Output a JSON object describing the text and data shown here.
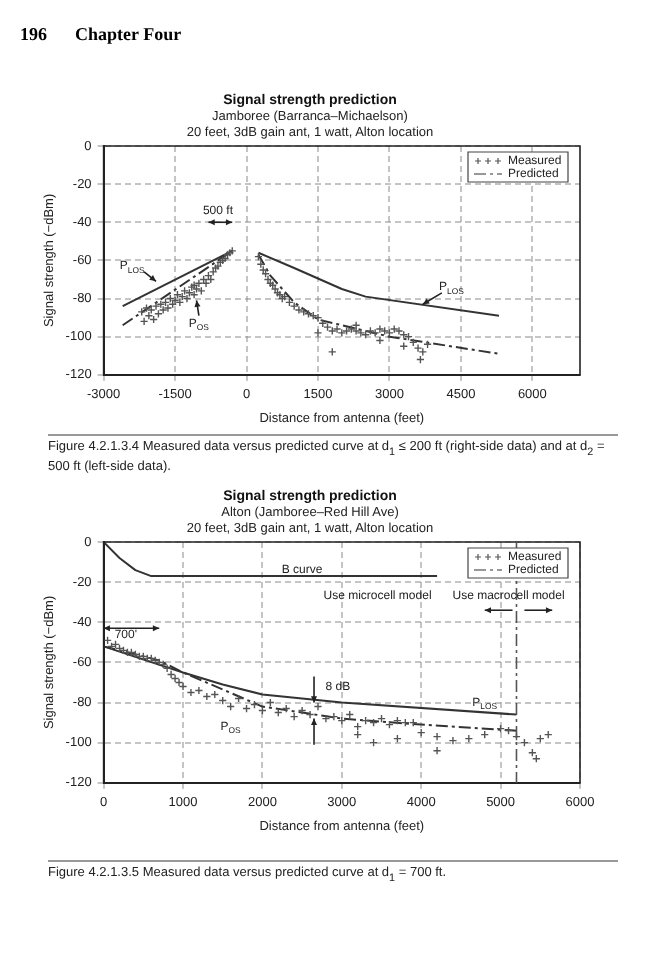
{
  "chart_data": [
    {
      "type": "scatter",
      "title": "Signal strength prediction",
      "subtitle": "Jamboree (Barranca–Michaelson)\n20 feet, 3dB gain ant, 1 watt, Alton location",
      "xlabel": "Distance from antenna (feet)",
      "ylabel": "Signal strength (−dBm)",
      "xlim": [
        -3000,
        7000
      ],
      "xticks": [
        -3000,
        -1500,
        0,
        1500,
        3000,
        4500,
        6000
      ],
      "ylim": [
        -120,
        0
      ],
      "yticks": [
        -120,
        -100,
        -80,
        -60,
        -40,
        -20,
        0
      ],
      "grid": true,
      "legend": "top right",
      "series": [
        {
          "name": "Measured",
          "color": "#555555",
          "marker": "cross",
          "x": [
            -2200,
            -2150,
            -2100,
            -2050,
            -2000,
            -1950,
            -1900,
            -1850,
            -1800,
            -1750,
            -1700,
            -1650,
            -1600,
            -1550,
            -1500,
            -1450,
            -1400,
            -1350,
            -1300,
            -1250,
            -1200,
            -1150,
            -1100,
            -1050,
            -1000,
            -950,
            -900,
            -850,
            -800,
            -750,
            -700,
            -650,
            -600,
            -550,
            -500,
            -450,
            -400,
            -350,
            -300,
            -1100,
            250,
            300,
            350,
            400,
            450,
            500,
            550,
            600,
            650,
            700,
            750,
            800,
            900,
            1000,
            1100,
            1200,
            1300,
            1400,
            1500,
            1600,
            1700,
            1800,
            1900,
            2000,
            2100,
            2200,
            2300,
            2400,
            2500,
            2600,
            2700,
            2800,
            2900,
            3000,
            3100,
            3200,
            3300,
            3400,
            3500,
            3600,
            3700,
            3800,
            1500,
            1800,
            2300,
            2800,
            3300,
            3650
          ],
          "values": [
            -87,
            -92,
            -85,
            -89,
            -86,
            -91,
            -84,
            -88,
            -83,
            -86,
            -82,
            -85,
            -80,
            -83,
            -81,
            -78,
            -82,
            -79,
            -76,
            -80,
            -77,
            -74,
            -78,
            -75,
            -72,
            -76,
            -70,
            -72,
            -68,
            -70,
            -66,
            -64,
            -63,
            -61,
            -60,
            -59,
            -57,
            -56,
            -55,
            -73,
            -58,
            -62,
            -65,
            -67,
            -70,
            -72,
            -73,
            -75,
            -77,
            -78,
            -80,
            -79,
            -82,
            -84,
            -86,
            -87,
            -88,
            -89,
            -90,
            -93,
            -95,
            -97,
            -96,
            -98,
            -97,
            -96,
            -97,
            -98,
            -99,
            -97,
            -98,
            -96,
            -97,
            -98,
            -96,
            -97,
            -99,
            -100,
            -103,
            -106,
            -108,
            -104,
            -98,
            -108,
            -94,
            -102,
            -105,
            -112
          ]
        },
        {
          "type": "line",
          "color": "#333333",
          "line_style": "dashed",
          "marker": "none",
          "x": [
            -2600,
            -300
          ],
          "values": [
            -94,
            -55
          ]
        },
        {
          "name": "Predicted",
          "type": "line",
          "color": "#333333",
          "line_style": "dashed",
          "marker": "none",
          "x": [
            250,
            500,
            1000,
            1500,
            3000,
            5300
          ],
          "values": [
            -57,
            -68,
            -82,
            -91,
            -100,
            -109
          ]
        },
        {
          "type": "line",
          "color": "#333333",
          "line_style": "solid",
          "marker": "none",
          "x": [
            -2600,
            -300
          ],
          "values": [
            -84,
            -55
          ]
        },
        {
          "type": "line",
          "color": "#333333",
          "line_style": "solid",
          "marker": "none",
          "x": [
            250,
            1000,
            2000,
            2500,
            5300
          ],
          "values": [
            -56,
            -64,
            -75,
            -79,
            -89
          ]
        }
      ],
      "annotations": [
        "196",
        "Chapter Four",
        "500 ft",
        "P$_{LOS}$",
        "P$_{OS}$",
        "P$_{LOS}$",
        "Figure 4.2.1.3.4 Measured data versus predicted curve at d$_{1}$ ≤ 200 ft (right-side data) and at d$_{2}$ = 500 ft (left-side data)."
      ]
    },
    {
      "type": "scatter",
      "title": "Signal strength prediction",
      "subtitle": "Alton (Jamboree–Red Hill Ave)\n20 feet, 3dB gain ant, 1 watt, Alton location",
      "xlabel": "Distance from antenna (feet)",
      "ylabel": "Signal strength (−dBm)",
      "xlim": [
        0,
        6000
      ],
      "xticks": [
        0,
        1000,
        2000,
        3000,
        4000,
        5000,
        6000
      ],
      "ylim": [
        -120,
        0
      ],
      "yticks": [
        -120,
        -100,
        -80,
        -60,
        -40,
        -20,
        0
      ],
      "grid": true,
      "legend": "top right",
      "series": [
        {
          "name": "Measured",
          "color": "#555555",
          "marker": "cross",
          "x": [
            50,
            100,
            150,
            200,
            250,
            300,
            350,
            400,
            450,
            500,
            550,
            600,
            650,
            700,
            750,
            800,
            850,
            900,
            950,
            1000,
            1100,
            1200,
            1300,
            1400,
            1500,
            1600,
            1700,
            1800,
            1900,
            2000,
            2100,
            2200,
            2300,
            2400,
            2500,
            2600,
            2700,
            2800,
            2900,
            3000,
            3100,
            3200,
            3300,
            3400,
            3500,
            3600,
            3700,
            3800,
            3900,
            4000,
            4200,
            4400,
            4600,
            4800,
            5000,
            5100,
            5200,
            5300,
            5400,
            5450,
            5500,
            5600,
            3200,
            3400,
            4200,
            3700
          ],
          "values": [
            -49,
            -52,
            -51,
            -53,
            -54,
            -55,
            -55,
            -56,
            -57,
            -57,
            -58,
            -58,
            -59,
            -60,
            -61,
            -63,
            -66,
            -68,
            -70,
            -72,
            -75,
            -74,
            -77,
            -76,
            -79,
            -82,
            -78,
            -83,
            -81,
            -84,
            -80,
            -85,
            -83,
            -87,
            -84,
            -86,
            -82,
            -88,
            -87,
            -89,
            -86,
            -92,
            -89,
            -90,
            -88,
            -91,
            -89,
            -90,
            -90,
            -95,
            -97,
            -99,
            -98,
            -96,
            -93,
            -94,
            -97,
            -100,
            -105,
            -108,
            -98,
            -96,
            -96,
            -100,
            -104,
            -98
          ]
        },
        {
          "name": "Predicted",
          "type": "line",
          "color": "#333333",
          "line_style": "dashed",
          "marker": "none",
          "x": [
            0,
            700,
            1000,
            2000,
            3000,
            4000,
            5200
          ],
          "values": [
            -52,
            -59,
            -65,
            -82,
            -88,
            -91,
            -94
          ]
        },
        {
          "type": "line",
          "color": "#333333",
          "line_style": "solid",
          "marker": "none",
          "x": [
            0,
            1000,
            1500,
            2000,
            3000,
            5200
          ],
          "values": [
            -52,
            -65,
            -71,
            -76,
            -80,
            -86
          ]
        },
        {
          "type": "line",
          "color": "#333333",
          "line_style": "solid",
          "marker": "none",
          "x": [
            0,
            200,
            400,
            600,
            4200
          ],
          "values": [
            0,
            -8,
            -14,
            -17,
            -17
          ]
        }
      ],
      "ref_lines": [
        {
          "axis": "x",
          "value": 5200,
          "line_style": "dashed",
          "color": "#555555"
        }
      ],
      "annotations": [
        "B curve",
        "Use microcell model",
        "Use macrocell model",
        "700'",
        "8 dB",
        "P$_{LOS}$",
        "P$_{OS}$",
        "Figure 4.2.1.3.5 Measured data versus predicted curve at d$_{1}$ = 700 ft."
      ]
    }
  ]
}
